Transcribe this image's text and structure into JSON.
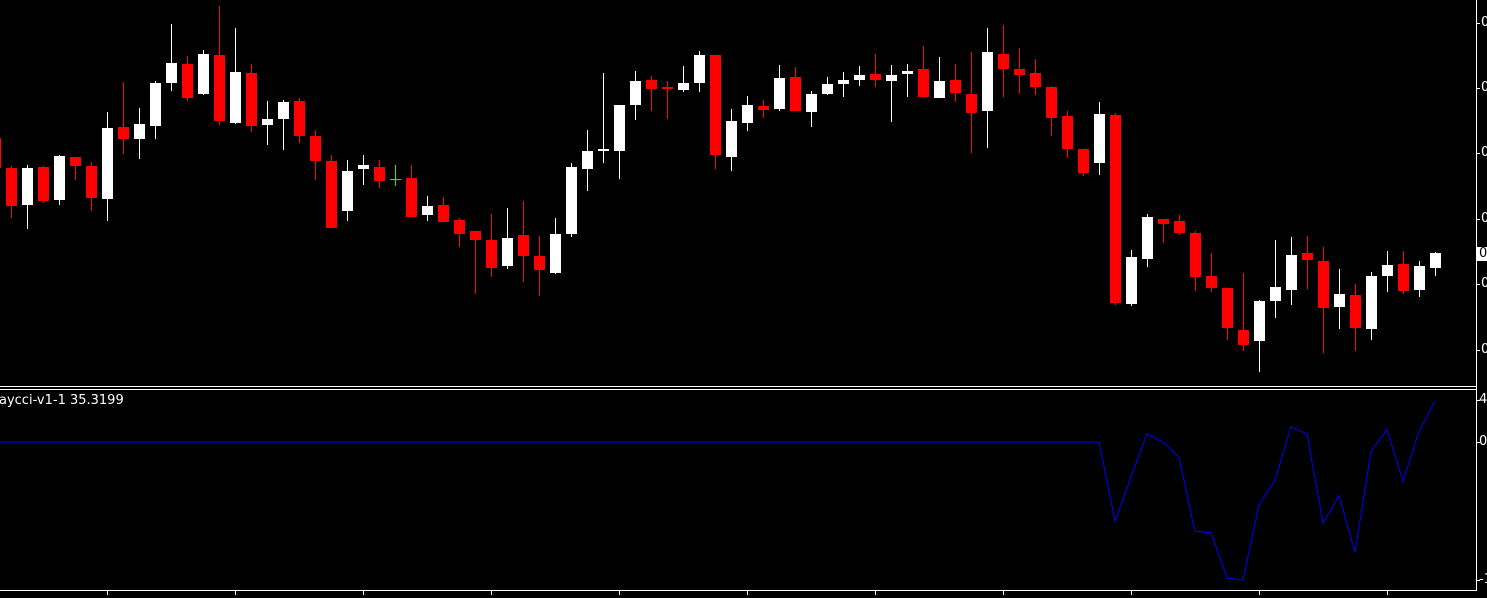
{
  "colors": {
    "background": "#000000",
    "bull": "#ffffff",
    "bear": "#ff0000",
    "doji": "#00ff00",
    "indicator_line": "#0000ff",
    "axis": "#ffffff"
  },
  "indicator": {
    "label": "aycci-v1-1 35.3199",
    "axis_labels": [
      "4",
      "0",
      "-1"
    ]
  },
  "price_axis": {
    "labels": [
      "0",
      "0",
      "0",
      "0",
      "0",
      "0"
    ],
    "current_price_label": "0"
  },
  "chart_data": [
    {
      "type": "candlestick",
      "note_units": "relative price level (axis labels clipped)",
      "ohlc": [
        [
          262,
          264,
          232,
          232
        ],
        [
          232,
          234,
          182,
          194
        ],
        [
          195,
          235,
          171,
          232
        ],
        [
          233,
          234,
          197,
          199
        ],
        [
          200,
          245,
          195,
          244
        ],
        [
          243,
          243,
          220,
          234
        ],
        [
          234,
          238,
          189,
          202
        ],
        [
          201,
          288,
          179,
          272
        ],
        [
          273,
          318,
          246,
          261
        ],
        [
          261,
          292,
          241,
          276
        ],
        [
          274,
          319,
          261,
          317
        ],
        [
          317,
          376,
          309,
          337
        ],
        [
          336,
          344,
          299,
          302
        ],
        [
          306,
          350,
          305,
          346
        ],
        [
          345,
          394,
          275,
          279
        ],
        [
          277,
          372,
          276,
          328
        ],
        [
          327,
          336,
          268,
          274
        ],
        [
          275,
          299,
          255,
          281
        ],
        [
          281,
          300,
          250,
          298
        ],
        [
          299,
          302,
          257,
          264
        ],
        [
          264,
          270,
          220,
          239
        ],
        [
          239,
          245,
          172,
          172
        ],
        [
          189,
          240,
          179,
          229
        ],
        [
          231,
          245,
          215,
          235
        ],
        [
          233,
          240,
          212,
          219
        ],
        [
          221,
          235,
          214,
          221
        ],
        [
          222,
          235,
          183,
          183
        ],
        [
          185,
          204,
          179,
          194
        ],
        [
          195,
          203,
          178,
          178
        ],
        [
          180,
          182,
          153,
          166
        ],
        [
          169,
          169,
          106,
          160
        ],
        [
          160,
          186,
          123,
          132
        ],
        [
          134,
          192,
          131,
          162
        ],
        [
          165,
          199,
          118,
          144
        ],
        [
          144,
          164,
          104,
          130
        ],
        [
          127,
          182,
          126,
          166
        ],
        [
          166,
          237,
          163,
          233
        ],
        [
          231,
          270,
          209,
          249
        ],
        [
          250,
          327,
          237,
          251
        ],
        [
          249,
          295,
          221,
          295
        ],
        [
          295,
          329,
          280,
          319
        ],
        [
          320,
          324,
          289,
          311
        ],
        [
          313,
          319,
          281,
          311
        ],
        [
          310,
          334,
          308,
          317
        ],
        [
          317,
          349,
          308,
          345
        ],
        [
          345,
          345,
          231,
          245
        ],
        [
          243,
          291,
          229,
          279
        ],
        [
          277,
          304,
          269,
          295
        ],
        [
          294,
          300,
          282,
          290
        ],
        [
          291,
          335,
          289,
          322
        ],
        [
          323,
          333,
          289,
          289
        ],
        [
          288,
          309,
          273,
          306
        ],
        [
          306,
          323,
          305,
          316
        ],
        [
          316,
          328,
          303,
          320
        ],
        [
          320,
          334,
          314,
          325
        ],
        [
          326,
          346,
          313,
          320
        ],
        [
          319,
          335,
          278,
          325
        ],
        [
          326,
          336,
          303,
          329
        ],
        [
          331,
          354,
          303,
          303
        ],
        [
          302,
          343,
          302,
          319
        ],
        [
          320,
          336,
          298,
          307
        ],
        [
          306,
          348,
          247,
          287
        ],
        [
          289,
          372,
          252,
          348
        ],
        [
          346,
          375,
          303,
          331
        ],
        [
          331,
          352,
          306,
          325
        ],
        [
          327,
          341,
          305,
          313
        ],
        [
          313,
          314,
          264,
          282
        ],
        [
          284,
          289,
          242,
          251
        ],
        [
          251,
          251,
          224,
          227
        ],
        [
          237,
          298,
          225,
          286
        ],
        [
          285,
          287,
          95,
          97
        ],
        [
          96,
          150,
          94,
          143
        ],
        [
          141,
          186,
          133,
          183
        ],
        [
          181,
          181,
          157,
          176
        ],
        [
          179,
          185,
          165,
          167
        ],
        [
          167,
          169,
          109,
          123
        ],
        [
          124,
          147,
          108,
          112
        ],
        [
          112,
          112,
          60,
          72
        ],
        [
          70,
          127,
          49,
          55
        ],
        [
          59,
          100,
          28,
          99
        ],
        [
          99,
          160,
          82,
          113
        ],
        [
          110,
          163,
          95,
          145
        ],
        [
          147,
          164,
          111,
          140
        ],
        [
          139,
          153,
          47,
          92
        ],
        [
          93,
          131,
          71,
          106
        ],
        [
          105,
          116,
          49,
          72
        ],
        [
          71,
          128,
          60,
          124
        ],
        [
          124,
          149,
          108,
          135
        ],
        [
          136,
          149,
          106,
          109
        ],
        [
          110,
          139,
          103,
          134
        ],
        [
          132,
          148,
          124,
          147
        ]
      ]
    },
    {
      "type": "line",
      "series": [
        {
          "name": "aycci-v1-1",
          "flat_until_index": 69,
          "flat_value": 0,
          "values_from_index_70": [
            -68,
            -30,
            7,
            0,
            -13,
            -77,
            -78,
            -117,
            -119,
            -54,
            -33,
            13,
            7,
            -70,
            -46,
            -95,
            -8,
            11,
            -34,
            9,
            35.3199
          ]
        }
      ]
    }
  ]
}
